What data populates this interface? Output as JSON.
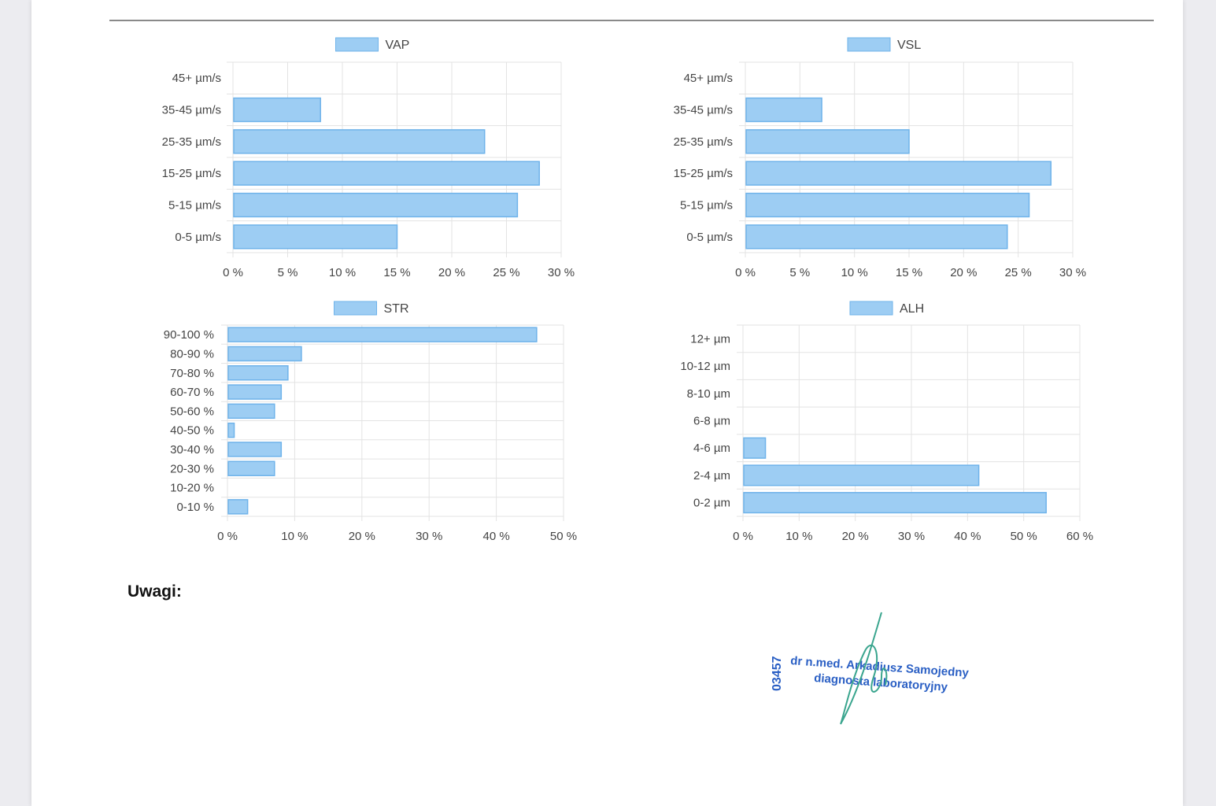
{
  "chart_data": [
    {
      "type": "bar",
      "orientation": "horizontal",
      "legend": "VAP",
      "categories": [
        "45+ µm/s",
        "35-45 µm/s",
        "25-35 µm/s",
        "15-25 µm/s",
        "5-15 µm/s",
        "0-5 µm/s"
      ],
      "values": [
        0,
        8,
        23,
        28,
        26,
        15
      ],
      "xlim": [
        0,
        30
      ],
      "xticks": [
        "0 %",
        "5 %",
        "10 %",
        "15 %",
        "20 %",
        "25 %",
        "30 %"
      ],
      "grid": true,
      "legend_position": "top"
    },
    {
      "type": "bar",
      "orientation": "horizontal",
      "legend": "VSL",
      "categories": [
        "45+ µm/s",
        "35-45 µm/s",
        "25-35 µm/s",
        "15-25 µm/s",
        "5-15 µm/s",
        "0-5 µm/s"
      ],
      "values": [
        0,
        7,
        15,
        28,
        26,
        24
      ],
      "xlim": [
        0,
        30
      ],
      "xticks": [
        "0 %",
        "5 %",
        "10 %",
        "15 %",
        "20 %",
        "25 %",
        "30 %"
      ],
      "grid": true,
      "legend_position": "top"
    },
    {
      "type": "bar",
      "orientation": "horizontal",
      "legend": "STR",
      "categories": [
        "90-100 %",
        "80-90 %",
        "70-80 %",
        "60-70 %",
        "50-60 %",
        "40-50 %",
        "30-40 %",
        "20-30 %",
        "10-20 %",
        "0-10 %"
      ],
      "values": [
        46,
        11,
        9,
        8,
        7,
        1,
        8,
        7,
        0,
        3
      ],
      "xlim": [
        0,
        50
      ],
      "xticks": [
        "0 %",
        "10 %",
        "20 %",
        "30 %",
        "40 %",
        "50 %"
      ],
      "grid": true,
      "legend_position": "top"
    },
    {
      "type": "bar",
      "orientation": "horizontal",
      "legend": "ALH",
      "categories": [
        "12+ µm",
        "10-12 µm",
        "8-10 µm",
        "6-8 µm",
        "4-6 µm",
        "2-4 µm",
        "0-2 µm"
      ],
      "values": [
        0,
        0,
        0,
        0,
        4,
        42,
        54
      ],
      "xlim": [
        0,
        60
      ],
      "xticks": [
        "0 %",
        "10 %",
        "20 %",
        "30 %",
        "40 %",
        "50 %",
        "60 %"
      ],
      "grid": true,
      "legend_position": "top"
    }
  ],
  "colors": {
    "bar_fill": "#9dcdf3",
    "bar_stroke": "#6fb3ea",
    "grid": "#e3e3e3",
    "text": "#444444"
  },
  "remarks_label": "Uwagi:",
  "stamp": {
    "number": "03457",
    "name": "dr n.med. Arkadiusz Samojedny",
    "title": "diagnosta laboratoryjny"
  }
}
